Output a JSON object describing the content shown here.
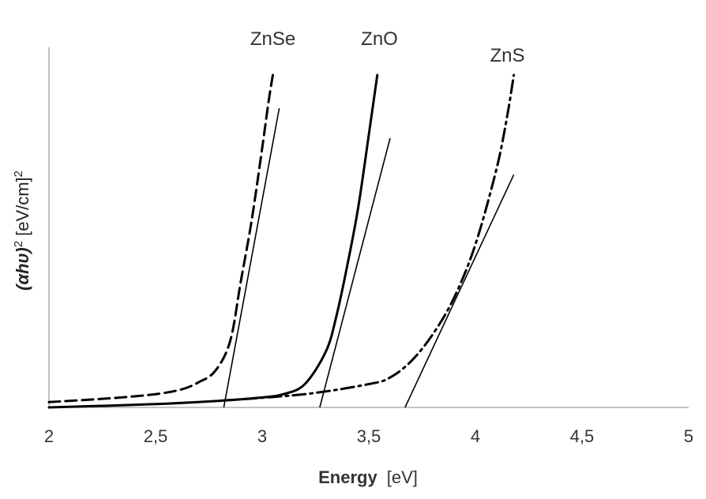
{
  "chart_data": {
    "type": "line",
    "xlabel_main": "Energy",
    "xlabel_unit": "[eV]",
    "ylabel_main": "(αhυ)",
    "ylabel_sup": "2",
    "ylabel_unit": "[eV/cm]",
    "ylabel_unit_sup": "2",
    "xlim": [
      2,
      5
    ],
    "ylim": [
      0,
      1
    ],
    "x_ticks": [
      2,
      2.5,
      3,
      3.5,
      4,
      4.5,
      5
    ],
    "x_tick_labels": [
      "2",
      "2,5",
      "3",
      "3,5",
      "4",
      "4,5",
      "5"
    ],
    "grid": false,
    "y_ticks_labeled": false,
    "series": [
      {
        "name": "ZnSe",
        "style": "dashed",
        "x": [
          2.0,
          2.3,
          2.5,
          2.62,
          2.7,
          2.78,
          2.85,
          2.9,
          2.95,
          3.0,
          3.03,
          3.05
        ],
        "y": [
          0.016,
          0.028,
          0.04,
          0.054,
          0.075,
          0.11,
          0.2,
          0.38,
          0.56,
          0.78,
          0.92,
          1.0
        ]
      },
      {
        "name": "ZnO",
        "style": "solid",
        "x": [
          2.0,
          2.5,
          2.8,
          3.0,
          3.1,
          3.2,
          3.3,
          3.35,
          3.4,
          3.45,
          3.5,
          3.54
        ],
        "y": [
          0.0,
          0.01,
          0.02,
          0.03,
          0.04,
          0.07,
          0.17,
          0.28,
          0.43,
          0.6,
          0.82,
          1.0
        ]
      },
      {
        "name": "ZnS",
        "style": "dashdot",
        "x": [
          2.8,
          3.2,
          3.5,
          3.6,
          3.7,
          3.8,
          3.9,
          4.0,
          4.1,
          4.15,
          4.18
        ],
        "y": [
          0.02,
          0.04,
          0.07,
          0.09,
          0.14,
          0.22,
          0.33,
          0.49,
          0.72,
          0.88,
          1.0
        ]
      }
    ],
    "tangents": [
      {
        "name": "ZnSe",
        "x": [
          2.82,
          3.08
        ],
        "y": [
          0.0,
          0.9
        ]
      },
      {
        "name": "ZnO",
        "x": [
          3.27,
          3.6
        ],
        "y": [
          0.0,
          0.81
        ]
      },
      {
        "name": "ZnS",
        "x": [
          3.67,
          4.18
        ],
        "y": [
          0.0,
          0.7
        ]
      }
    ],
    "series_labels": [
      {
        "name": "ZnSe",
        "x": 3.05,
        "y": 1.09
      },
      {
        "name": "ZnO",
        "x": 3.55,
        "y": 1.09
      },
      {
        "name": "ZnS",
        "x": 4.15,
        "y": 1.04
      }
    ],
    "colors": {
      "lines": "#000000",
      "axes": "#b0b0b0",
      "text": "#333333"
    }
  }
}
